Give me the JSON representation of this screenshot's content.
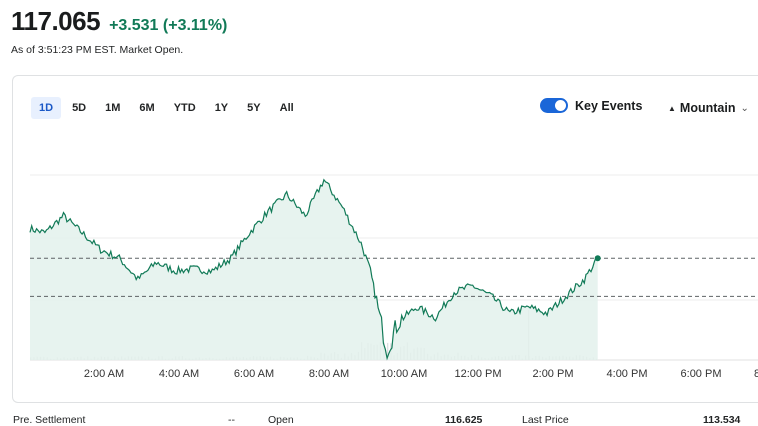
{
  "quote": {
    "price": "117.065",
    "change": "+3.531 (+3.11%)",
    "as_of": "As of 3:51:23 PM EST. Market Open."
  },
  "ranges": [
    "1D",
    "5D",
    "1M",
    "6M",
    "YTD",
    "1Y",
    "5Y",
    "All"
  ],
  "active_range": "1D",
  "key_events": {
    "label": "Key Events",
    "enabled": true
  },
  "chart_style": {
    "label": "Mountain",
    "icon": "mountain-icon",
    "chevron": "chevron-down-icon"
  },
  "colors": {
    "line": "#117a57",
    "fill": "#e3f1ec",
    "active_range": "#1a58c7",
    "toggle": "#1a66d8"
  },
  "chart_data": {
    "type": "area",
    "x_ticks": [
      "2:00 AM",
      "4:00 AM",
      "6:00 AM",
      "8:00 AM",
      "10:00 AM",
      "12:00 PM",
      "2:00 PM",
      "4:00 PM",
      "6:00 PM",
      "8"
    ],
    "x_hours": [
      0.6,
      1.0,
      1.5,
      2.0,
      2.5,
      3.0,
      3.5,
      4.0,
      4.5,
      5.0,
      5.5,
      6.0,
      6.5,
      7.0,
      7.5,
      8.0,
      8.5,
      9.0,
      9.5,
      9.75,
      10.0,
      10.2,
      10.5,
      11.0,
      11.5,
      12.0,
      12.5,
      13.0,
      13.5,
      14.0,
      14.5,
      15.0,
      15.5,
      15.86
    ],
    "y_levels": [
      0.62,
      0.6,
      0.68,
      0.6,
      0.52,
      0.48,
      0.38,
      0.46,
      0.42,
      0.43,
      0.42,
      0.48,
      0.6,
      0.7,
      0.78,
      0.68,
      0.85,
      0.72,
      0.55,
      0.42,
      0.2,
      0.05,
      0.18,
      0.25,
      0.2,
      0.32,
      0.35,
      0.3,
      0.22,
      0.25,
      0.22,
      0.3,
      0.38,
      0.48
    ],
    "reference_levels": [
      0.48,
      0.3
    ],
    "volume_note": "intraday volume bars along the baseline"
  },
  "stats": {
    "pre_settlement_label": "Pre. Settlement",
    "pre_settlement_value": "--",
    "open_label": "Open",
    "open_value": "116.625",
    "last_price_label": "Last Price",
    "last_price_value": "113.534"
  }
}
